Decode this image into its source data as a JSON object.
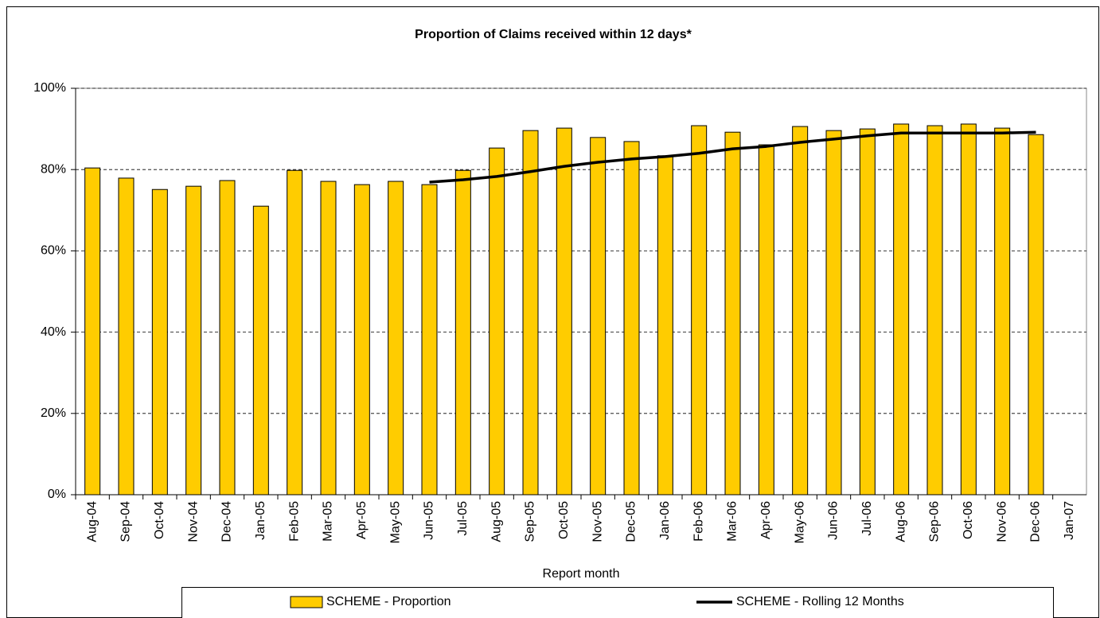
{
  "chart_data": {
    "type": "bar_line",
    "title": "Proportion of Claims received within 12 days*",
    "x_label": "Report month",
    "categories": [
      "Aug-04",
      "Sep-04",
      "Oct-04",
      "Nov-04",
      "Dec-04",
      "Jan-05",
      "Feb-05",
      "Mar-05",
      "Apr-05",
      "May-05",
      "Jun-05",
      "Jul-05",
      "Aug-05",
      "Sep-05",
      "Oct-05",
      "Nov-05",
      "Dec-05",
      "Jan-06",
      "Feb-06",
      "Mar-06",
      "Apr-06",
      "May-06",
      "Jun-06",
      "Jul-06",
      "Aug-06",
      "Sep-06",
      "Oct-06",
      "Nov-06",
      "Dec-06",
      "Jan-07"
    ],
    "series": [
      {
        "name": "SCHEME - Proportion",
        "type": "bar",
        "color": "#ffcc00",
        "values": [
          80.4,
          77.9,
          75.1,
          75.9,
          77.3,
          71.0,
          79.8,
          77.1,
          76.3,
          77.1,
          76.3,
          79.8,
          85.3,
          89.6,
          90.2,
          87.9,
          86.9,
          83.4,
          90.8,
          89.2,
          86.1,
          90.6,
          89.6,
          90.0,
          91.2,
          90.8,
          91.2,
          90.2,
          88.6,
          null
        ]
      },
      {
        "name": "SCHEME - Rolling 12 Months",
        "type": "line",
        "color": "#000000",
        "values": [
          null,
          null,
          null,
          null,
          null,
          null,
          null,
          null,
          null,
          null,
          76.9,
          77.5,
          78.3,
          79.5,
          80.8,
          81.8,
          82.6,
          83.2,
          84.0,
          85.1,
          85.7,
          86.7,
          87.5,
          88.3,
          89.0,
          89.0,
          89.0,
          89.0,
          89.2,
          null
        ]
      }
    ],
    "ylim": [
      0,
      100
    ],
    "yticks": [
      {
        "value": 0,
        "label": "0%"
      },
      {
        "value": 20,
        "label": "20%"
      },
      {
        "value": 40,
        "label": "40%"
      },
      {
        "value": 60,
        "label": "60%"
      },
      {
        "value": 80,
        "label": "80%"
      },
      {
        "value": 100,
        "label": "100%"
      }
    ],
    "grid": true
  }
}
